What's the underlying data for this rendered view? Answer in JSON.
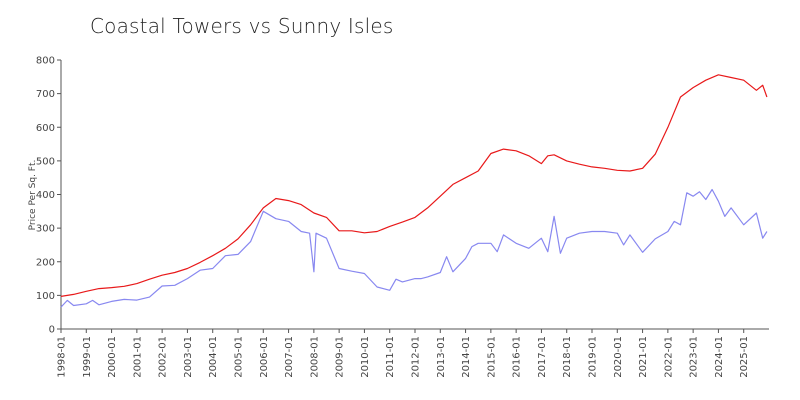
{
  "chart_data": {
    "type": "line",
    "title": "Coastal Towers vs Sunny Isles",
    "xlabel": "",
    "ylabel": "Price Per Sq. Ft.",
    "ylim": [
      0,
      800
    ],
    "yticks": [
      0,
      100,
      200,
      300,
      400,
      500,
      600,
      700,
      800
    ],
    "xlim": [
      "1998-01",
      "2026-01"
    ],
    "xticks": [
      "1998-01",
      "1999-01",
      "2000-01",
      "2001-01",
      "2002-01",
      "2003-01",
      "2004-01",
      "2005-01",
      "2006-01",
      "2007-01",
      "2008-01",
      "2009-01",
      "2010-01",
      "2011-01",
      "2012-01",
      "2013-01",
      "2014-01",
      "2015-01",
      "2016-01",
      "2017-01",
      "2018-01",
      "2019-01",
      "2020-01",
      "2021-01",
      "2022-01",
      "2023-01",
      "2024-01",
      "2025-01"
    ],
    "grid": false,
    "legend": "none",
    "series": [
      {
        "color": "#e8191a",
        "points": [
          [
            "1998-01",
            97
          ],
          [
            "1998-07",
            103
          ],
          [
            "1999-01",
            112
          ],
          [
            "1999-07",
            120
          ],
          [
            "2000-01",
            123
          ],
          [
            "2000-07",
            127
          ],
          [
            "2001-01",
            135
          ],
          [
            "2001-07",
            148
          ],
          [
            "2002-01",
            160
          ],
          [
            "2002-07",
            168
          ],
          [
            "2003-01",
            180
          ],
          [
            "2003-07",
            198
          ],
          [
            "2004-01",
            218
          ],
          [
            "2004-07",
            240
          ],
          [
            "2005-01",
            268
          ],
          [
            "2005-07",
            310
          ],
          [
            "2006-01",
            360
          ],
          [
            "2006-07",
            388
          ],
          [
            "2007-01",
            382
          ],
          [
            "2007-07",
            370
          ],
          [
            "2008-01",
            345
          ],
          [
            "2008-07",
            332
          ],
          [
            "2009-01",
            292
          ],
          [
            "2009-07",
            292
          ],
          [
            "2010-01",
            286
          ],
          [
            "2010-07",
            290
          ],
          [
            "2011-01",
            305
          ],
          [
            "2011-07",
            318
          ],
          [
            "2012-01",
            332
          ],
          [
            "2012-07",
            360
          ],
          [
            "2013-01",
            395
          ],
          [
            "2013-07",
            430
          ],
          [
            "2014-01",
            450
          ],
          [
            "2014-07",
            470
          ],
          [
            "2015-01",
            522
          ],
          [
            "2015-07",
            535
          ],
          [
            "2016-01",
            530
          ],
          [
            "2016-07",
            515
          ],
          [
            "2017-01",
            492
          ],
          [
            "2017-04",
            515
          ],
          [
            "2017-07",
            518
          ],
          [
            "2018-01",
            500
          ],
          [
            "2018-07",
            490
          ],
          [
            "2019-01",
            482
          ],
          [
            "2019-07",
            478
          ],
          [
            "2020-01",
            472
          ],
          [
            "2020-07",
            470
          ],
          [
            "2021-01",
            478
          ],
          [
            "2021-07",
            520
          ],
          [
            "2022-01",
            600
          ],
          [
            "2022-07",
            690
          ],
          [
            "2023-01",
            718
          ],
          [
            "2023-07",
            740
          ],
          [
            "2024-01",
            756
          ],
          [
            "2024-07",
            748
          ],
          [
            "2025-01",
            740
          ],
          [
            "2025-07",
            710
          ],
          [
            "2025-10",
            725
          ],
          [
            "2025-12",
            690
          ]
        ]
      },
      {
        "color": "#8888f0",
        "points": [
          [
            "1998-01",
            65
          ],
          [
            "1998-04",
            85
          ],
          [
            "1998-07",
            70
          ],
          [
            "1999-01",
            75
          ],
          [
            "1999-04",
            85
          ],
          [
            "1999-07",
            72
          ],
          [
            "2000-01",
            82
          ],
          [
            "2000-07",
            88
          ],
          [
            "2001-01",
            86
          ],
          [
            "2001-07",
            95
          ],
          [
            "2002-01",
            128
          ],
          [
            "2002-07",
            130
          ],
          [
            "2003-01",
            150
          ],
          [
            "2003-07",
            175
          ],
          [
            "2004-01",
            180
          ],
          [
            "2004-07",
            218
          ],
          [
            "2005-01",
            222
          ],
          [
            "2005-07",
            260
          ],
          [
            "2006-01",
            350
          ],
          [
            "2006-07",
            328
          ],
          [
            "2007-01",
            320
          ],
          [
            "2007-07",
            290
          ],
          [
            "2007-11",
            285
          ],
          [
            "2008-01",
            170
          ],
          [
            "2008-02",
            285
          ],
          [
            "2008-07",
            270
          ],
          [
            "2009-01",
            180
          ],
          [
            "2009-07",
            172
          ],
          [
            "2010-01",
            165
          ],
          [
            "2010-07",
            125
          ],
          [
            "2011-01",
            115
          ],
          [
            "2011-04",
            148
          ],
          [
            "2011-07",
            140
          ],
          [
            "2012-01",
            150
          ],
          [
            "2012-04",
            150
          ],
          [
            "2012-07",
            155
          ],
          [
            "2013-01",
            168
          ],
          [
            "2013-04",
            215
          ],
          [
            "2013-07",
            170
          ],
          [
            "2014-01",
            210
          ],
          [
            "2014-04",
            245
          ],
          [
            "2014-07",
            255
          ],
          [
            "2015-01",
            255
          ],
          [
            "2015-04",
            230
          ],
          [
            "2015-07",
            280
          ],
          [
            "2016-01",
            255
          ],
          [
            "2016-07",
            240
          ],
          [
            "2017-01",
            270
          ],
          [
            "2017-04",
            230
          ],
          [
            "2017-07",
            335
          ],
          [
            "2017-10",
            225
          ],
          [
            "2018-01",
            270
          ],
          [
            "2018-07",
            285
          ],
          [
            "2019-01",
            290
          ],
          [
            "2019-07",
            290
          ],
          [
            "2020-01",
            285
          ],
          [
            "2020-04",
            250
          ],
          [
            "2020-07",
            280
          ],
          [
            "2021-01",
            228
          ],
          [
            "2021-07",
            268
          ],
          [
            "2022-01",
            290
          ],
          [
            "2022-04",
            320
          ],
          [
            "2022-07",
            310
          ],
          [
            "2022-10",
            405
          ],
          [
            "2023-01",
            395
          ],
          [
            "2023-04",
            408
          ],
          [
            "2023-07",
            385
          ],
          [
            "2023-10",
            415
          ],
          [
            "2024-01",
            380
          ],
          [
            "2024-04",
            335
          ],
          [
            "2024-07",
            360
          ],
          [
            "2025-01",
            310
          ],
          [
            "2025-07",
            345
          ],
          [
            "2025-10",
            270
          ],
          [
            "2025-12",
            290
          ]
        ]
      }
    ]
  }
}
